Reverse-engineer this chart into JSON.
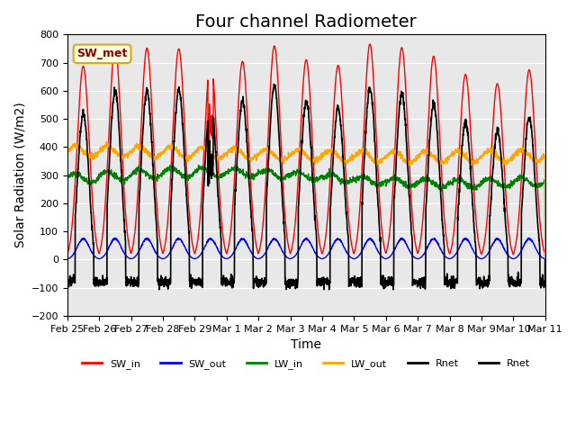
{
  "title": "Four channel Radiometer",
  "xlabel": "Time",
  "ylabel": "Solar Radiation (W/m2)",
  "ylim": [
    -200,
    800
  ],
  "annotation": "SW_met",
  "x_tick_labels": [
    "Feb 25",
    "Feb 26",
    "Feb 27",
    "Feb 28",
    "Feb 29",
    "Mar 1",
    "Mar 2",
    "Mar 3",
    "Mar 4",
    "Mar 5",
    "Mar 6",
    "Mar 7",
    "Mar 8",
    "Mar 9",
    "Mar 10",
    "Mar 11"
  ],
  "n_days": 15,
  "background_color": "#e8e8e8",
  "legend_entries": [
    "SW_in",
    "SW_out",
    "LW_in",
    "LW_out",
    "Rnet",
    "Rnet"
  ],
  "legend_colors": [
    "red",
    "blue",
    "green",
    "orange",
    "black",
    "black"
  ],
  "title_fontsize": 14
}
